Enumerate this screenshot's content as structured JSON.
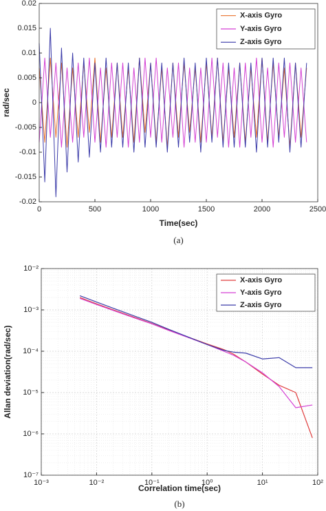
{
  "chart_data": [
    {
      "type": "line",
      "xlabel": "Time(sec)",
      "ylabel": "rad/sec",
      "caption": "(a)",
      "x": [
        0,
        50,
        100,
        150,
        200,
        250,
        300,
        350,
        400,
        450,
        500,
        550,
        600,
        650,
        700,
        750,
        800,
        850,
        900,
        950,
        1000,
        1050,
        1100,
        1150,
        1200,
        1250,
        1300,
        1350,
        1400,
        1450,
        1500,
        1550,
        1600,
        1650,
        1700,
        1750,
        1800,
        1850,
        1900,
        1950,
        2000,
        2050,
        2100,
        2150,
        2200,
        2250,
        2300,
        2350,
        2400
      ],
      "series": [
        {
          "name": "X-axis Gyro",
          "color": "#e8702a",
          "values": [
            0.007,
            -0.008,
            0.009,
            -0.007,
            0.008,
            -0.009,
            0.007,
            -0.007,
            0.008,
            -0.006,
            0.009,
            -0.008,
            0.007,
            -0.007,
            0.008,
            -0.007,
            0.007,
            -0.008,
            0.009,
            -0.006,
            0.008,
            -0.008,
            0.007,
            -0.009,
            0.008,
            -0.007,
            0.008,
            -0.006,
            0.007,
            -0.008,
            0.008,
            -0.007,
            0.009,
            -0.008,
            0.007,
            -0.007,
            0.008,
            -0.008,
            0.007,
            -0.007,
            0.009,
            -0.008,
            0.008,
            -0.007,
            0.007,
            -0.009,
            0.008,
            -0.007,
            0.007
          ]
        },
        {
          "name": "Y-axis Gyro",
          "color": "#d33fd3",
          "values": [
            -0.008,
            0.009,
            -0.007,
            0.008,
            -0.009,
            0.007,
            -0.008,
            0.008,
            -0.007,
            0.009,
            -0.008,
            0.007,
            -0.009,
            0.008,
            -0.007,
            0.008,
            -0.009,
            0.007,
            -0.008,
            0.009,
            -0.007,
            0.009,
            -0.008,
            0.007,
            -0.007,
            0.008,
            -0.009,
            0.007,
            -0.008,
            0.007,
            -0.008,
            0.009,
            -0.007,
            0.008,
            -0.009,
            0.007,
            -0.009,
            0.008,
            -0.007,
            0.009,
            -0.008,
            0.007,
            -0.009,
            0.008,
            -0.007,
            0.008,
            -0.008,
            0.007,
            -0.008
          ]
        },
        {
          "name": "Z-axis Gyro",
          "color": "#3a3aa8",
          "values": [
            0.012,
            -0.016,
            0.015,
            -0.019,
            0.011,
            -0.014,
            0.01,
            -0.012,
            0.009,
            -0.011,
            0.008,
            -0.01,
            0.009,
            -0.009,
            0.008,
            -0.009,
            0.008,
            -0.01,
            0.009,
            -0.009,
            0.008,
            -0.009,
            0.008,
            -0.01,
            0.008,
            -0.009,
            0.009,
            -0.008,
            0.008,
            -0.01,
            0.009,
            -0.008,
            0.009,
            -0.009,
            0.008,
            -0.009,
            0.008,
            -0.009,
            0.008,
            -0.01,
            0.009,
            -0.009,
            0.009,
            -0.008,
            0.009,
            -0.01,
            0.008,
            -0.009,
            0.008
          ]
        }
      ],
      "xlim": [
        0,
        2500
      ],
      "xticks": [
        0,
        500,
        1000,
        1500,
        2000,
        2500
      ],
      "ylim": [
        -0.02,
        0.02
      ],
      "yticks": [
        -0.02,
        -0.015,
        -0.01,
        -0.005,
        0,
        0.005,
        0.01,
        0.015,
        0.02
      ],
      "grid": false,
      "legend": "upper right"
    },
    {
      "type": "line",
      "xlabel": "Correlation time(sec)",
      "ylabel": "Allan deviation(rad/sec)",
      "caption": "(b)",
      "x": [
        0.005,
        0.01,
        0.02,
        0.05,
        0.1,
        0.2,
        0.5,
        1,
        2,
        3,
        5,
        10,
        20,
        40,
        80
      ],
      "series": [
        {
          "name": "X-axis Gyro",
          "color": "#e03c3c",
          "values": [
            0.002,
            0.0014,
            0.001,
            0.00065,
            0.00047,
            0.00033,
            0.00021,
            0.00015,
            0.00011,
            8.5e-05,
            5.5e-05,
            2.8e-05,
            1.5e-05,
            1e-05,
            8e-07
          ]
        },
        {
          "name": "Y-axis Gyro",
          "color": "#d33fd3",
          "values": [
            0.0019,
            0.00135,
            0.00097,
            0.00063,
            0.00046,
            0.00032,
            0.000205,
            0.000145,
            0.0001,
            8e-05,
            5.5e-05,
            3e-05,
            1.4e-05,
            4.3e-06,
            5e-06
          ]
        },
        {
          "name": "Z-axis Gyro",
          "color": "#3a3aa8",
          "values": [
            0.0022,
            0.00155,
            0.0011,
            0.0007,
            0.0005,
            0.00034,
            0.00021,
            0.000145,
            0.000105,
            9.5e-05,
            9e-05,
            6.5e-05,
            7e-05,
            4e-05,
            4e-05
          ]
        }
      ],
      "xscale": "log",
      "yscale": "log",
      "xlim": [
        0.001,
        100
      ],
      "xticks": [
        {
          "value": 0.001,
          "label": "10⁻³"
        },
        {
          "value": 0.01,
          "label": "10⁻²"
        },
        {
          "value": 0.1,
          "label": "10⁻¹"
        },
        {
          "value": 1,
          "label": "10⁰"
        },
        {
          "value": 10,
          "label": "10¹"
        },
        {
          "value": 100,
          "label": "10²"
        }
      ],
      "ylim": [
        1e-07,
        0.01
      ],
      "yticks": [
        {
          "value": 1e-07,
          "label": "10⁻⁷"
        },
        {
          "value": 1e-06,
          "label": "10⁻⁶"
        },
        {
          "value": 1e-05,
          "label": "10⁻⁵"
        },
        {
          "value": 0.0001,
          "label": "10⁻⁴"
        },
        {
          "value": 0.001,
          "label": "10⁻³"
        },
        {
          "value": 0.01,
          "label": "10⁻²"
        }
      ],
      "grid": true,
      "minor_grid": true,
      "legend": "upper right"
    }
  ]
}
